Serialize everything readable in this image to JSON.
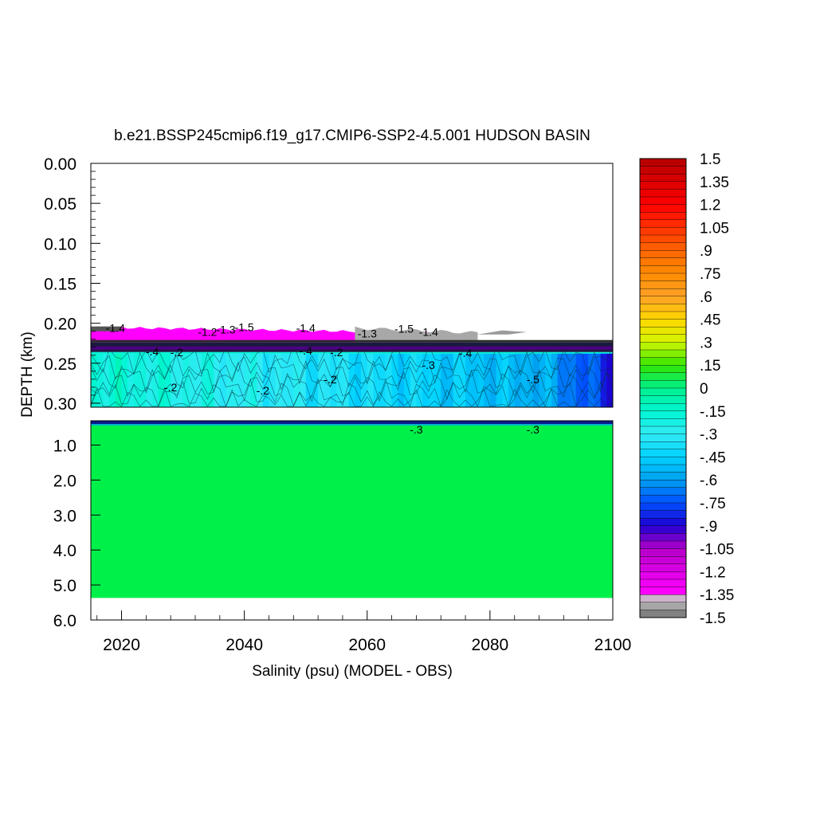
{
  "chart_data": {
    "type": "heatmap",
    "title": "b.e21.BSSP245cmip6.f19_g17.CMIP6-SSP2-4.5.001 HUDSON BASIN",
    "xlabel": "Salinity (psu) (MODEL - OBS)",
    "ylabel": "DEPTH (km)",
    "xlim": [
      2015,
      2100
    ],
    "x_ticks": [
      "2020",
      "2040",
      "2060",
      "2080",
      "2100"
    ],
    "upper_panel": {
      "ylim": [
        0.0,
        0.305
      ],
      "y_ticks": [
        "0.00",
        "0.05",
        "0.10",
        "0.15",
        "0.20",
        "0.25",
        "0.30"
      ]
    },
    "lower_panel": {
      "ylim": [
        0.305,
        6.0
      ],
      "y_ticks": [
        "1.0",
        "2.0",
        "3.0",
        "4.0",
        "5.0",
        "6.0"
      ]
    },
    "colorbar": {
      "labels": [
        "1.5",
        "1.35",
        "1.2",
        "1.05",
        ".9",
        ".75",
        ".6",
        ".45",
        ".3",
        ".15",
        "0",
        "-.15",
        "-.3",
        "-.45",
        "-.6",
        "-.75",
        "-.9",
        "-1.05",
        "-1.2",
        "-1.35",
        "-1.5"
      ],
      "range": [
        -1.5,
        1.5
      ]
    },
    "contour_labels": [
      {
        "text": "-1.4",
        "x": 2019,
        "y": 0.206
      },
      {
        "text": "-1.2",
        "x": 2034,
        "y": 0.211
      },
      {
        "text": "-1.3",
        "x": 2037,
        "y": 0.208
      },
      {
        "text": "-1.5",
        "x": 2040,
        "y": 0.205
      },
      {
        "text": "-1.4",
        "x": 2050,
        "y": 0.206
      },
      {
        "text": "-1.3",
        "x": 2060,
        "y": 0.213
      },
      {
        "text": "-1.5",
        "x": 2066,
        "y": 0.207
      },
      {
        "text": "-1.4",
        "x": 2070,
        "y": 0.211
      },
      {
        "text": "-.3",
        "x": 2070,
        "y": 0.252
      },
      {
        "text": "-.2",
        "x": 2028,
        "y": 0.28
      },
      {
        "text": "-.2",
        "x": 2043,
        "y": 0.284
      },
      {
        "text": "-.2",
        "x": 2054,
        "y": 0.27
      },
      {
        "text": "-.5",
        "x": 2087,
        "y": 0.27
      },
      {
        "text": "-.4",
        "x": 2025,
        "y": 0.235
      },
      {
        "text": "-.2",
        "x": 2029,
        "y": 0.236
      },
      {
        "text": "-.4",
        "x": 2050,
        "y": 0.234
      },
      {
        "text": "-.2",
        "x": 2055,
        "y": 0.236
      },
      {
        "text": "-.4",
        "x": 2076,
        "y": 0.237
      },
      {
        "text": "-.3",
        "x": 2068,
        "y": 0.55
      },
      {
        "text": "-.3",
        "x": 2087,
        "y": 0.55
      }
    ],
    "legend": "colorbar-right"
  }
}
